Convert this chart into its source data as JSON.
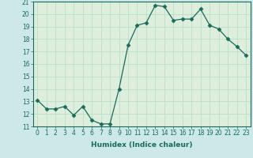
{
  "x": [
    0,
    1,
    2,
    3,
    4,
    5,
    6,
    7,
    8,
    9,
    10,
    11,
    12,
    13,
    14,
    15,
    16,
    17,
    18,
    19,
    20,
    21,
    22,
    23
  ],
  "y": [
    13.1,
    12.4,
    12.4,
    12.6,
    11.9,
    12.6,
    11.5,
    11.2,
    11.2,
    14.0,
    17.5,
    19.1,
    19.3,
    20.7,
    20.6,
    19.5,
    19.6,
    19.6,
    20.4,
    19.1,
    18.8,
    18.0,
    17.4,
    16.7
  ],
  "line_color": "#1a6b5a",
  "marker": "D",
  "marker_size": 2.5,
  "xlabel": "Humidex (Indice chaleur)",
  "ylim": [
    11,
    21
  ],
  "xlim": [
    -0.5,
    23.5
  ],
  "yticks": [
    11,
    12,
    13,
    14,
    15,
    16,
    17,
    18,
    19,
    20,
    21
  ],
  "xticks": [
    0,
    1,
    2,
    3,
    4,
    5,
    6,
    7,
    8,
    9,
    10,
    11,
    12,
    13,
    14,
    15,
    16,
    17,
    18,
    19,
    20,
    21,
    22,
    23
  ],
  "outer_bg": "#cce8e8",
  "plot_bg": "#ddeedd",
  "grid_color": "#bbddcc",
  "tick_fontsize": 5.5,
  "label_fontsize": 6.5
}
